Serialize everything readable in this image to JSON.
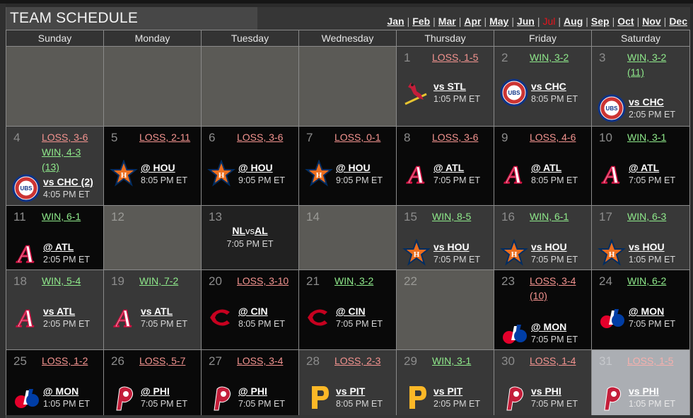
{
  "header": {
    "title": "TEAM SCHEDULE",
    "months": [
      {
        "label": "Jan",
        "current": false
      },
      {
        "label": "Feb",
        "current": false
      },
      {
        "label": "Mar",
        "current": false
      },
      {
        "label": "Apr",
        "current": false
      },
      {
        "label": "May",
        "current": false
      },
      {
        "label": "Jun",
        "current": false
      },
      {
        "label": "Jul",
        "current": true
      },
      {
        "label": "Aug",
        "current": false
      },
      {
        "label": "Sep",
        "current": false
      },
      {
        "label": "Oct",
        "current": false
      },
      {
        "label": "Nov",
        "current": false
      },
      {
        "label": "Dec",
        "current": false
      }
    ],
    "separator": "|",
    "current_month_color": "#e8141c"
  },
  "weekdays": [
    "Sunday",
    "Monday",
    "Tuesday",
    "Wednesday",
    "Thursday",
    "Friday",
    "Saturday"
  ],
  "colors": {
    "win": "#8fea8b",
    "loss": "#f3938f",
    "home_bg": "#383838",
    "away_bg": "#090909",
    "off_bg": "#5b5a56",
    "today_bg": "#abaeb3"
  },
  "weeks": [
    [
      {
        "type": "empty"
      },
      {
        "type": "empty"
      },
      {
        "type": "empty"
      },
      {
        "type": "empty"
      },
      {
        "day": "1",
        "type": "home",
        "results": [
          {
            "text": "LOSS, 1-5",
            "outcome": "loss"
          }
        ],
        "opponent": "vs STL",
        "time": "1:05 PM ET",
        "logo": "cardinals-logo"
      },
      {
        "day": "2",
        "type": "home",
        "results": [
          {
            "text": "WIN, 3-2",
            "outcome": "win"
          }
        ],
        "opponent": "vs CHC",
        "time": "8:05 PM ET",
        "logo": "cubs-logo"
      },
      {
        "day": "3",
        "type": "home",
        "results": [
          {
            "text": "WIN, 3-2",
            "outcome": "win"
          },
          {
            "text": "(11)",
            "outcome": "win"
          }
        ],
        "opponent": "vs CHC",
        "time": "2:05 PM ET",
        "logo": "cubs-logo"
      }
    ],
    [
      {
        "day": "4",
        "type": "home",
        "results": [
          {
            "text": "LOSS, 3-6",
            "outcome": "loss"
          },
          {
            "text": "WIN, 4-3",
            "outcome": "win"
          },
          {
            "text": "(13)",
            "outcome": "win"
          }
        ],
        "opponent": "vs CHC (2)",
        "time": "4:05 PM ET",
        "logo": "cubs-logo"
      },
      {
        "day": "5",
        "type": "away",
        "results": [
          {
            "text": "LOSS, 2-11",
            "outcome": "loss"
          }
        ],
        "opponent": "@ HOU",
        "time": "8:05 PM ET",
        "logo": "astros-logo"
      },
      {
        "day": "6",
        "type": "away",
        "results": [
          {
            "text": "LOSS, 3-6",
            "outcome": "loss"
          }
        ],
        "opponent": "@ HOU",
        "time": "9:05 PM ET",
        "logo": "astros-logo"
      },
      {
        "day": "7",
        "type": "away",
        "results": [
          {
            "text": "LOSS, 0-1",
            "outcome": "loss"
          }
        ],
        "opponent": "@ HOU",
        "time": "9:05 PM ET",
        "logo": "astros-logo"
      },
      {
        "day": "8",
        "type": "away",
        "results": [
          {
            "text": "LOSS, 3-6",
            "outcome": "loss"
          }
        ],
        "opponent": "@ ATL",
        "time": "7:05 PM ET",
        "logo": "braves-logo"
      },
      {
        "day": "9",
        "type": "away",
        "results": [
          {
            "text": "LOSS, 4-6",
            "outcome": "loss"
          }
        ],
        "opponent": "@ ATL",
        "time": "8:05 PM ET",
        "logo": "braves-logo"
      },
      {
        "day": "10",
        "type": "away",
        "results": [
          {
            "text": "WIN, 3-1",
            "outcome": "win"
          }
        ],
        "opponent": "@ ATL",
        "time": "7:05 PM ET",
        "logo": "braves-logo"
      }
    ],
    [
      {
        "day": "11",
        "type": "away",
        "results": [
          {
            "text": "WIN, 6-1",
            "outcome": "win"
          }
        ],
        "opponent": "@ ATL",
        "time": "2:05 PM ET",
        "logo": "braves-logo"
      },
      {
        "day": "12",
        "type": "off"
      },
      {
        "day": "13",
        "type": "allstar",
        "allstar": {
          "left": "NL",
          "vs": "vs",
          "right": "AL",
          "time": "7:05 PM ET"
        }
      },
      {
        "day": "14",
        "type": "off"
      },
      {
        "day": "15",
        "type": "home",
        "results": [
          {
            "text": "WIN, 8-5",
            "outcome": "win"
          }
        ],
        "opponent": "vs HOU",
        "time": "7:05 PM ET",
        "logo": "astros-logo"
      },
      {
        "day": "16",
        "type": "home",
        "results": [
          {
            "text": "WIN, 6-1",
            "outcome": "win"
          }
        ],
        "opponent": "vs HOU",
        "time": "7:05 PM ET",
        "logo": "astros-logo"
      },
      {
        "day": "17",
        "type": "home",
        "results": [
          {
            "text": "WIN, 6-3",
            "outcome": "win"
          }
        ],
        "opponent": "vs HOU",
        "time": "1:05 PM ET",
        "logo": "astros-logo"
      }
    ],
    [
      {
        "day": "18",
        "type": "home",
        "results": [
          {
            "text": "WIN, 5-4",
            "outcome": "win"
          }
        ],
        "opponent": "vs ATL",
        "time": "2:05 PM ET",
        "logo": "braves-logo"
      },
      {
        "day": "19",
        "type": "home",
        "results": [
          {
            "text": "WIN, 7-2",
            "outcome": "win"
          }
        ],
        "opponent": "vs ATL",
        "time": "7:05 PM ET",
        "logo": "braves-logo"
      },
      {
        "day": "20",
        "type": "away",
        "results": [
          {
            "text": "LOSS, 3-10",
            "outcome": "loss"
          }
        ],
        "opponent": "@ CIN",
        "time": "8:05 PM ET",
        "logo": "reds-logo"
      },
      {
        "day": "21",
        "type": "away",
        "results": [
          {
            "text": "WIN, 3-2",
            "outcome": "win"
          }
        ],
        "opponent": "@ CIN",
        "time": "7:05 PM ET",
        "logo": "reds-logo"
      },
      {
        "day": "22",
        "type": "off"
      },
      {
        "day": "23",
        "type": "away",
        "results": [
          {
            "text": "LOSS, 3-4",
            "outcome": "loss"
          },
          {
            "text": "(10)",
            "outcome": "loss"
          }
        ],
        "opponent": "@ MON",
        "time": "7:05 PM ET",
        "logo": "expos-logo"
      },
      {
        "day": "24",
        "type": "away",
        "results": [
          {
            "text": "WIN, 6-2",
            "outcome": "win"
          }
        ],
        "opponent": "@ MON",
        "time": "7:05 PM ET",
        "logo": "expos-logo"
      }
    ],
    [
      {
        "day": "25",
        "type": "away",
        "results": [
          {
            "text": "LOSS, 1-2",
            "outcome": "loss"
          }
        ],
        "opponent": "@ MON",
        "time": "1:05 PM ET",
        "logo": "expos-logo"
      },
      {
        "day": "26",
        "type": "away",
        "results": [
          {
            "text": "LOSS, 5-7",
            "outcome": "loss"
          }
        ],
        "opponent": "@ PHI",
        "time": "7:05 PM ET",
        "logo": "phillies-logo"
      },
      {
        "day": "27",
        "type": "away",
        "results": [
          {
            "text": "LOSS, 3-4",
            "outcome": "loss"
          }
        ],
        "opponent": "@ PHI",
        "time": "7:05 PM ET",
        "logo": "phillies-logo"
      },
      {
        "day": "28",
        "type": "home",
        "results": [
          {
            "text": "LOSS, 2-3",
            "outcome": "loss"
          }
        ],
        "opponent": "vs PIT",
        "time": "8:05 PM ET",
        "logo": "pirates-logo"
      },
      {
        "day": "29",
        "type": "home",
        "results": [
          {
            "text": "WIN, 3-1",
            "outcome": "win"
          }
        ],
        "opponent": "vs PIT",
        "time": "2:05 PM ET",
        "logo": "pirates-logo"
      },
      {
        "day": "30",
        "type": "home",
        "results": [
          {
            "text": "LOSS, 1-4",
            "outcome": "loss"
          }
        ],
        "opponent": "vs PHI",
        "time": "7:05 PM ET",
        "logo": "phillies-logo"
      },
      {
        "day": "31",
        "type": "today",
        "results": [
          {
            "text": "LOSS, 1-5",
            "outcome": "loss"
          }
        ],
        "opponent": "vs PHI",
        "time": "1:05 PM ET",
        "logo": "phillies-logo"
      }
    ]
  ]
}
